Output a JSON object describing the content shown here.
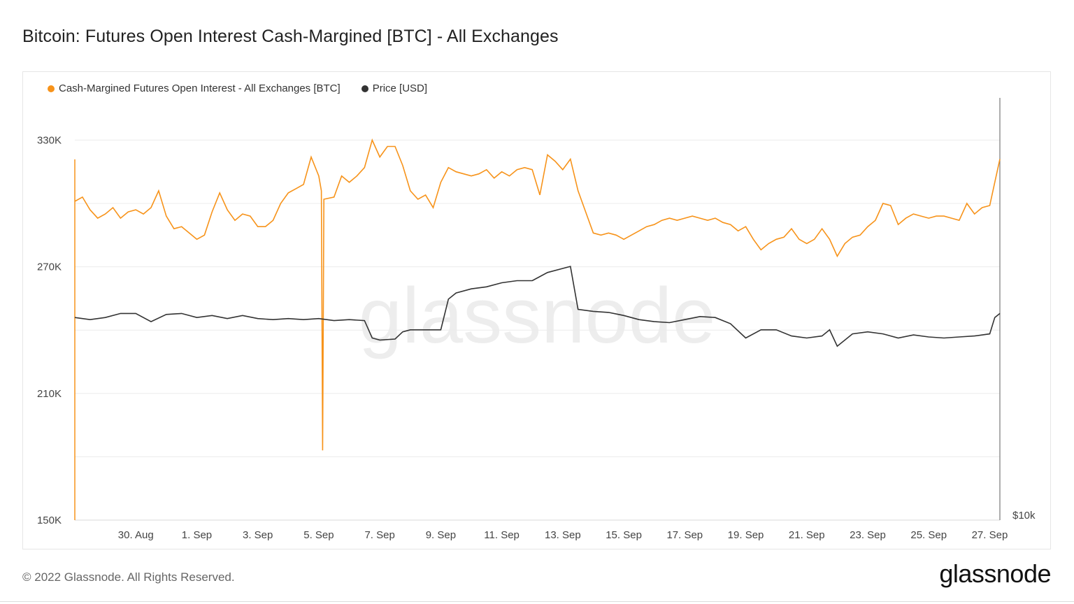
{
  "title": "Bitcoin: Futures Open Interest Cash-Margined [BTC] - All Exchanges",
  "watermark": "glassnode",
  "footer": {
    "copyright": "© 2022 Glassnode. All Rights Reserved.",
    "brand": "glassnode"
  },
  "colors": {
    "open_interest": "#f7931a",
    "price": "#333333",
    "grid": "#ececec"
  },
  "chart_data": {
    "type": "line",
    "legend_position": "top-left",
    "grid": true,
    "x_ticks": [
      "30. Aug",
      "1. Sep",
      "3. Sep",
      "5. Sep",
      "7. Sep",
      "9. Sep",
      "11. Sep",
      "13. Sep",
      "15. Sep",
      "17. Sep",
      "19. Sep",
      "21. Sep",
      "23. Sep",
      "25. Sep",
      "27. Sep"
    ],
    "x_range": [
      "2022-08-28",
      "2022-09-27T08:00"
    ],
    "y_left": {
      "ticks": [
        "330K",
        "270K",
        "210K",
        "150K"
      ],
      "ylim": [
        150000,
        350000
      ]
    },
    "y_right": {
      "ticks": [
        "$10k"
      ]
    },
    "series": [
      {
        "name": "Cash-Margined Futures Open Interest - All Exchanges [BTC]",
        "axis": "left",
        "points": [
          [
            "2022-08-28T00:00",
            301000
          ],
          [
            "2022-08-28T06:00",
            303000
          ],
          [
            "2022-08-28T12:00",
            297000
          ],
          [
            "2022-08-28T18:00",
            293000
          ],
          [
            "2022-08-29T00:00",
            295000
          ],
          [
            "2022-08-29T06:00",
            298000
          ],
          [
            "2022-08-29T12:00",
            293000
          ],
          [
            "2022-08-29T18:00",
            296000
          ],
          [
            "2022-08-30T00:00",
            297000
          ],
          [
            "2022-08-30T06:00",
            295000
          ],
          [
            "2022-08-30T12:00",
            298000
          ],
          [
            "2022-08-30T18:00",
            306000
          ],
          [
            "2022-08-31T00:00",
            294000
          ],
          [
            "2022-08-31T06:00",
            288000
          ],
          [
            "2022-08-31T12:00",
            289000
          ],
          [
            "2022-08-31T18:00",
            286000
          ],
          [
            "2022-09-01T00:00",
            283000
          ],
          [
            "2022-09-01T06:00",
            285000
          ],
          [
            "2022-09-01T12:00",
            296000
          ],
          [
            "2022-09-01T18:00",
            305000
          ],
          [
            "2022-09-02T00:00",
            297000
          ],
          [
            "2022-09-02T06:00",
            292000
          ],
          [
            "2022-09-02T12:00",
            295000
          ],
          [
            "2022-09-02T18:00",
            294000
          ],
          [
            "2022-09-03T00:00",
            289000
          ],
          [
            "2022-09-03T06:00",
            289000
          ],
          [
            "2022-09-03T12:00",
            292000
          ],
          [
            "2022-09-03T18:00",
            300000
          ],
          [
            "2022-09-04T00:00",
            305000
          ],
          [
            "2022-09-04T06:00",
            307000
          ],
          [
            "2022-09-04T12:00",
            309000
          ],
          [
            "2022-09-04T18:00",
            322000
          ],
          [
            "2022-09-05T00:00",
            313000
          ],
          [
            "2022-09-05T02:00",
            306000
          ],
          [
            "2022-09-05T03:00",
            183000
          ],
          [
            "2022-09-05T04:00",
            302000
          ],
          [
            "2022-09-05T12:00",
            303000
          ],
          [
            "2022-09-05T18:00",
            313000
          ],
          [
            "2022-09-06T00:00",
            310000
          ],
          [
            "2022-09-06T06:00",
            313000
          ],
          [
            "2022-09-06T12:00",
            317000
          ],
          [
            "2022-09-06T18:00",
            330000
          ],
          [
            "2022-09-07T00:00",
            322000
          ],
          [
            "2022-09-07T06:00",
            327000
          ],
          [
            "2022-09-07T12:00",
            327000
          ],
          [
            "2022-09-07T18:00",
            318000
          ],
          [
            "2022-09-08T00:00",
            306000
          ],
          [
            "2022-09-08T06:00",
            302000
          ],
          [
            "2022-09-08T12:00",
            304000
          ],
          [
            "2022-09-08T18:00",
            298000
          ],
          [
            "2022-09-09T00:00",
            310000
          ],
          [
            "2022-09-09T06:00",
            317000
          ],
          [
            "2022-09-09T12:00",
            315000
          ],
          [
            "2022-09-09T18:00",
            314000
          ],
          [
            "2022-09-10T00:00",
            313000
          ],
          [
            "2022-09-10T06:00",
            314000
          ],
          [
            "2022-09-10T12:00",
            316000
          ],
          [
            "2022-09-10T18:00",
            312000
          ],
          [
            "2022-09-11T00:00",
            315000
          ],
          [
            "2022-09-11T06:00",
            313000
          ],
          [
            "2022-09-11T12:00",
            316000
          ],
          [
            "2022-09-11T18:00",
            317000
          ],
          [
            "2022-09-12T00:00",
            316000
          ],
          [
            "2022-09-12T06:00",
            304000
          ],
          [
            "2022-09-12T12:00",
            323000
          ],
          [
            "2022-09-12T18:00",
            320000
          ],
          [
            "2022-09-13T00:00",
            316000
          ],
          [
            "2022-09-13T06:00",
            321000
          ],
          [
            "2022-09-13T12:00",
            306000
          ],
          [
            "2022-09-13T18:00",
            296000
          ],
          [
            "2022-09-14T00:00",
            286000
          ],
          [
            "2022-09-14T06:00",
            285000
          ],
          [
            "2022-09-14T12:00",
            286000
          ],
          [
            "2022-09-14T18:00",
            285000
          ],
          [
            "2022-09-15T00:00",
            283000
          ],
          [
            "2022-09-15T06:00",
            285000
          ],
          [
            "2022-09-15T12:00",
            287000
          ],
          [
            "2022-09-15T18:00",
            289000
          ],
          [
            "2022-09-16T00:00",
            290000
          ],
          [
            "2022-09-16T06:00",
            292000
          ],
          [
            "2022-09-16T12:00",
            293000
          ],
          [
            "2022-09-16T18:00",
            292000
          ],
          [
            "2022-09-17T00:00",
            293000
          ],
          [
            "2022-09-17T06:00",
            294000
          ],
          [
            "2022-09-17T12:00",
            293000
          ],
          [
            "2022-09-17T18:00",
            292000
          ],
          [
            "2022-09-18T00:00",
            293000
          ],
          [
            "2022-09-18T06:00",
            291000
          ],
          [
            "2022-09-18T12:00",
            290000
          ],
          [
            "2022-09-18T18:00",
            287000
          ],
          [
            "2022-09-19T00:00",
            289000
          ],
          [
            "2022-09-19T06:00",
            283000
          ],
          [
            "2022-09-19T12:00",
            278000
          ],
          [
            "2022-09-19T18:00",
            281000
          ],
          [
            "2022-09-20T00:00",
            283000
          ],
          [
            "2022-09-20T06:00",
            284000
          ],
          [
            "2022-09-20T12:00",
            288000
          ],
          [
            "2022-09-20T18:00",
            283000
          ],
          [
            "2022-09-21T00:00",
            281000
          ],
          [
            "2022-09-21T06:00",
            283000
          ],
          [
            "2022-09-21T12:00",
            288000
          ],
          [
            "2022-09-21T18:00",
            283000
          ],
          [
            "2022-09-22T00:00",
            275000
          ],
          [
            "2022-09-22T06:00",
            281000
          ],
          [
            "2022-09-22T12:00",
            284000
          ],
          [
            "2022-09-22T18:00",
            285000
          ],
          [
            "2022-09-23T00:00",
            289000
          ],
          [
            "2022-09-23T06:00",
            292000
          ],
          [
            "2022-09-23T12:00",
            300000
          ],
          [
            "2022-09-23T18:00",
            299000
          ],
          [
            "2022-09-24T00:00",
            290000
          ],
          [
            "2022-09-24T06:00",
            293000
          ],
          [
            "2022-09-24T12:00",
            295000
          ],
          [
            "2022-09-24T18:00",
            294000
          ],
          [
            "2022-09-25T00:00",
            293000
          ],
          [
            "2022-09-25T06:00",
            294000
          ],
          [
            "2022-09-25T12:00",
            294000
          ],
          [
            "2022-09-25T18:00",
            293000
          ],
          [
            "2022-09-26T00:00",
            292000
          ],
          [
            "2022-09-26T06:00",
            300000
          ],
          [
            "2022-09-26T12:00",
            295000
          ],
          [
            "2022-09-26T18:00",
            298000
          ],
          [
            "2022-09-27T00:00",
            299000
          ],
          [
            "2022-09-27T04:00",
            310000
          ],
          [
            "2022-09-27T08:00",
            321000
          ]
        ]
      },
      {
        "name": "Price [USD]",
        "axis": "right",
        "points": [
          [
            "2022-08-28T00:00",
            19900
          ],
          [
            "2022-08-28T12:00",
            19800
          ],
          [
            "2022-08-29T00:00",
            19900
          ],
          [
            "2022-08-29T12:00",
            20100
          ],
          [
            "2022-08-30T00:00",
            20100
          ],
          [
            "2022-08-30T12:00",
            19700
          ],
          [
            "2022-08-31T00:00",
            20050
          ],
          [
            "2022-08-31T12:00",
            20100
          ],
          [
            "2022-09-01T00:00",
            19900
          ],
          [
            "2022-09-01T12:00",
            20000
          ],
          [
            "2022-09-02T00:00",
            19850
          ],
          [
            "2022-09-02T12:00",
            20000
          ],
          [
            "2022-09-03T00:00",
            19850
          ],
          [
            "2022-09-03T12:00",
            19800
          ],
          [
            "2022-09-04T00:00",
            19850
          ],
          [
            "2022-09-04T12:00",
            19800
          ],
          [
            "2022-09-05T00:00",
            19850
          ],
          [
            "2022-09-05T12:00",
            19750
          ],
          [
            "2022-09-06T00:00",
            19800
          ],
          [
            "2022-09-06T12:00",
            19750
          ],
          [
            "2022-09-06T18:00",
            18900
          ],
          [
            "2022-09-07T00:00",
            18800
          ],
          [
            "2022-09-07T12:00",
            18850
          ],
          [
            "2022-09-07T18:00",
            19200
          ],
          [
            "2022-09-08T00:00",
            19300
          ],
          [
            "2022-09-08T12:00",
            19300
          ],
          [
            "2022-09-09T00:00",
            19300
          ],
          [
            "2022-09-09T06:00",
            20800
          ],
          [
            "2022-09-09T12:00",
            21100
          ],
          [
            "2022-09-10T00:00",
            21300
          ],
          [
            "2022-09-10T12:00",
            21400
          ],
          [
            "2022-09-11T00:00",
            21600
          ],
          [
            "2022-09-11T12:00",
            21700
          ],
          [
            "2022-09-12T00:00",
            21700
          ],
          [
            "2022-09-12T12:00",
            22100
          ],
          [
            "2022-09-13T00:00",
            22300
          ],
          [
            "2022-09-13T06:00",
            22400
          ],
          [
            "2022-09-13T12:00",
            20300
          ],
          [
            "2022-09-14T00:00",
            20200
          ],
          [
            "2022-09-14T12:00",
            20150
          ],
          [
            "2022-09-15T00:00",
            20000
          ],
          [
            "2022-09-15T12:00",
            19800
          ],
          [
            "2022-09-16T00:00",
            19700
          ],
          [
            "2022-09-16T12:00",
            19650
          ],
          [
            "2022-09-17T00:00",
            19800
          ],
          [
            "2022-09-17T12:00",
            19950
          ],
          [
            "2022-09-18T00:00",
            19900
          ],
          [
            "2022-09-18T12:00",
            19600
          ],
          [
            "2022-09-19T00:00",
            18900
          ],
          [
            "2022-09-19T12:00",
            19300
          ],
          [
            "2022-09-20T00:00",
            19300
          ],
          [
            "2022-09-20T12:00",
            19000
          ],
          [
            "2022-09-21T00:00",
            18900
          ],
          [
            "2022-09-21T12:00",
            19000
          ],
          [
            "2022-09-21T18:00",
            19300
          ],
          [
            "2022-09-22T00:00",
            18500
          ],
          [
            "2022-09-22T12:00",
            19100
          ],
          [
            "2022-09-23T00:00",
            19200
          ],
          [
            "2022-09-23T12:00",
            19100
          ],
          [
            "2022-09-24T00:00",
            18900
          ],
          [
            "2022-09-24T12:00",
            19050
          ],
          [
            "2022-09-25T00:00",
            18950
          ],
          [
            "2022-09-25T12:00",
            18900
          ],
          [
            "2022-09-26T00:00",
            18950
          ],
          [
            "2022-09-26T12:00",
            19000
          ],
          [
            "2022-09-27T00:00",
            19100
          ],
          [
            "2022-09-27T04:00",
            19900
          ],
          [
            "2022-09-27T08:00",
            20100
          ]
        ]
      }
    ]
  }
}
